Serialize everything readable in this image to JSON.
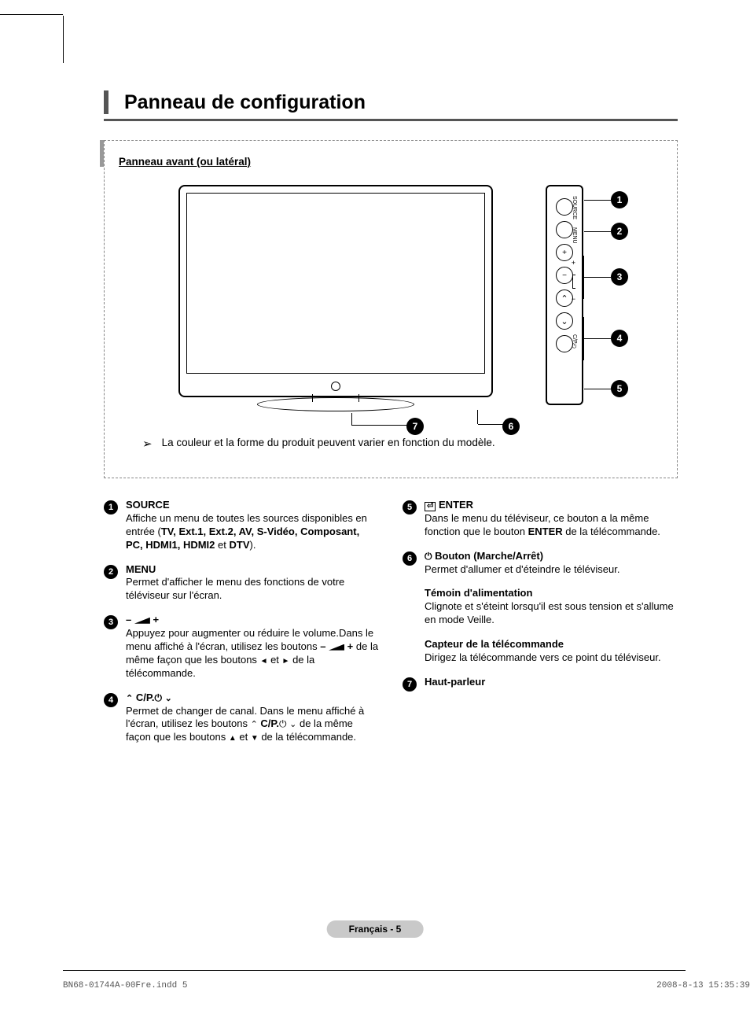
{
  "title": "Panneau de configuration",
  "panel_subtitle": "Panneau avant (ou latéral)",
  "diagram_note": "La couleur et la forme du produit peuvent varier en fonction du modèle.",
  "side_buttons": {
    "source": "SOURCE",
    "menu": "MENU",
    "cp": "C/P.⏻"
  },
  "callouts": [
    "1",
    "2",
    "3",
    "4",
    "5",
    "6",
    "7"
  ],
  "items_left": [
    {
      "n": "1",
      "head": "SOURCE",
      "prefix": "",
      "body1": "Affiche un menu de toutes les sources disponibles en entrée (",
      "bold": "TV, Ext.1, Ext.2, AV, S-Vidéo, Composant, PC, HDMI1, HDMI2",
      "body2": " et ",
      "bold2": "DTV",
      "body3": ")."
    },
    {
      "n": "2",
      "head": "MENU",
      "body": "Permet d'afficher le menu des fonctions de votre téléviseur sur l'écran."
    },
    {
      "n": "3",
      "head_sym": "vol",
      "body1": "Appuyez pour augmenter ou réduire le volume.Dans le menu affiché à l'écran, utilisez les boutons ",
      "sym1": "– ",
      "sym2": " +",
      "body2": " de la même façon que les boutons ",
      "body3": " et ",
      "body4": " de la télécommande."
    },
    {
      "n": "4",
      "head_sym": "cp",
      "head": "C/P.",
      "body1": "Permet de changer de canal. Dans le menu affiché à l'écran, utilisez les boutons ",
      "bold1": "C/P.",
      "body2": " de la même façon que les boutons ",
      "body3": " et ",
      "body4": " de la télécommande."
    }
  ],
  "items_right": [
    {
      "n": "5",
      "head": "ENTER",
      "icon": "enter",
      "body1": "Dans le menu du téléviseur, ce bouton a la même fonction que le bouton ",
      "bold": "ENTER",
      "body2": " de la télécommande."
    },
    {
      "n": "6",
      "head": "Bouton (Marche/Arrêt)",
      "icon": "power",
      "body": "Permet d'allumer et d'éteindre le téléviseur."
    }
  ],
  "subs": [
    {
      "head": "Témoin d'alimentation",
      "body": "Clignote et s'éteint lorsqu'il est sous tension et s'allume en mode Veille."
    },
    {
      "head": "Capteur de la télécommande",
      "body": "Dirigez la télécommande vers ce point du téléviseur."
    }
  ],
  "item7": {
    "n": "7",
    "head": "Haut-parleur"
  },
  "footer": "Français - 5",
  "print_left": "BN68-01744A-00Fre.indd   5",
  "print_right": "2008-8-13   15:35:39"
}
